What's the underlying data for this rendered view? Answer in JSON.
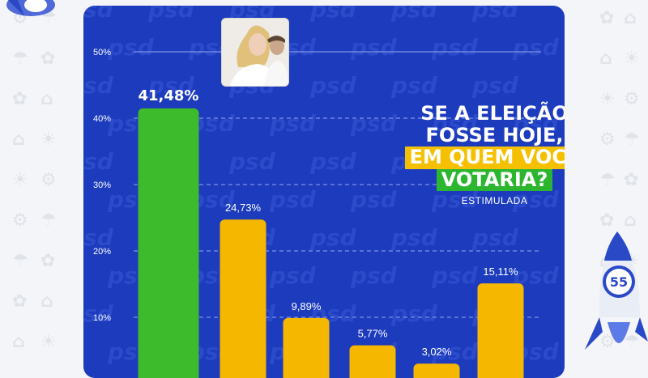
{
  "headline": {
    "line1": "SE A ELEIÇÃO",
    "line2": "FOSSE HOJE,",
    "line3": "EM QUEM VOCÊ",
    "line4": "VOTARIA?",
    "subtitle": "ESTIMULADA"
  },
  "watermark": "psd",
  "badge_number": "55",
  "colors": {
    "card": "#1c3bbd",
    "leader_bar": "#3dbb2c",
    "other_bars": "#f5b700",
    "highlight_yellow": "#f5c000",
    "highlight_green": "#2cb62f"
  },
  "chart_data": {
    "type": "bar",
    "ylim": [
      0,
      50
    ],
    "yticks": [
      "50%",
      "40%",
      "30%",
      "20%",
      "10%"
    ],
    "grid": true,
    "values": [
      41.48,
      24.73,
      9.89,
      5.77,
      3.02,
      15.11
    ],
    "value_labels": [
      "41,48%",
      "24,73%",
      "9,89%",
      "5,77%",
      "3,02%",
      "15,11%"
    ]
  }
}
